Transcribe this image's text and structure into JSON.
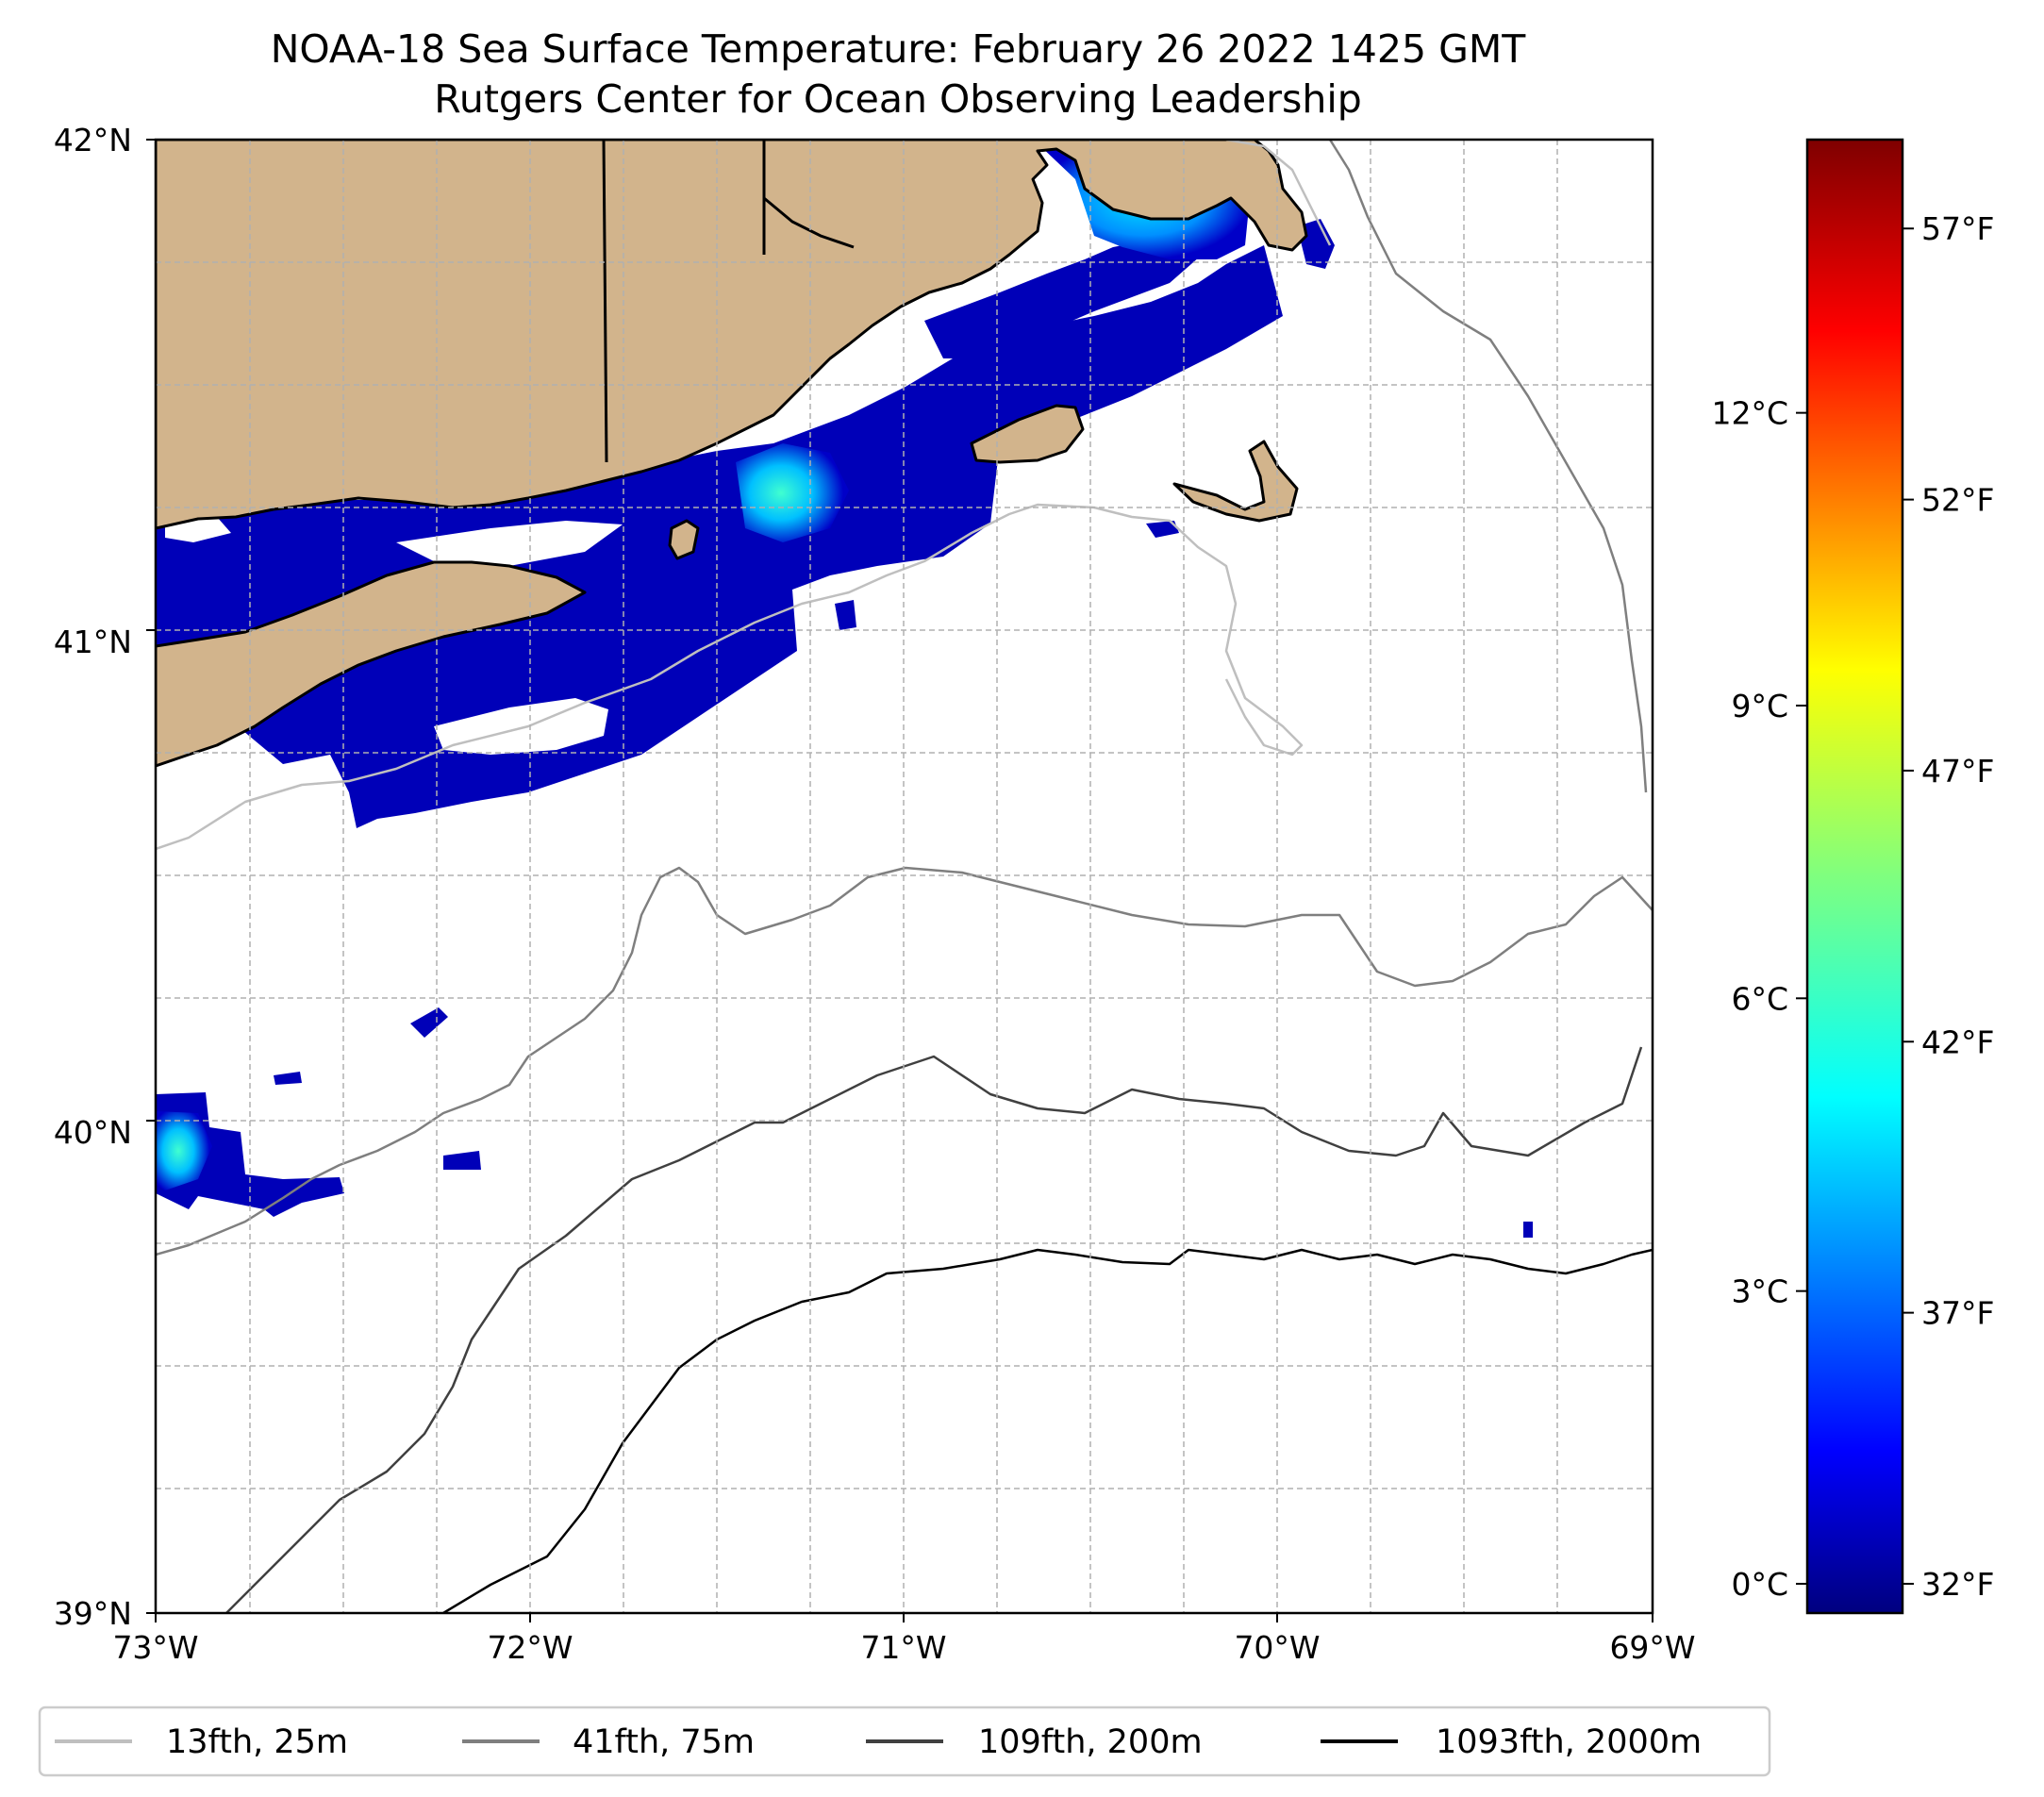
{
  "title": {
    "line1": "NOAA-18 Sea Surface Temperature: February 26 2022 1425 GMT",
    "line2": "Rutgers Center for Ocean Observing Leadership"
  },
  "map": {
    "lon_range": [
      -73,
      -69
    ],
    "lat_range": [
      39,
      42
    ],
    "lon_ticks": [
      {
        "value": -73,
        "label": "73°W"
      },
      {
        "value": -72,
        "label": "72°W"
      },
      {
        "value": -71,
        "label": "71°W"
      },
      {
        "value": -70,
        "label": "70°W"
      },
      {
        "value": -69,
        "label": "69°W"
      }
    ],
    "lat_ticks": [
      {
        "value": 42,
        "label": "42°N"
      },
      {
        "value": 41,
        "label": "41°N"
      },
      {
        "value": 40,
        "label": "40°N"
      },
      {
        "value": 39,
        "label": "39°N"
      }
    ],
    "land_color": "#d2b48c",
    "gridlines": "dashed"
  },
  "colorbar": {
    "celsius_range": [
      -0.3,
      14.8
    ],
    "celsius_ticks": [
      {
        "value": 0,
        "label": "0°C"
      },
      {
        "value": 3,
        "label": "3°C"
      },
      {
        "value": 6,
        "label": "6°C"
      },
      {
        "value": 9,
        "label": "9°C"
      },
      {
        "value": 12,
        "label": "12°C"
      }
    ],
    "fahrenheit_ticks": [
      {
        "value": 32,
        "label": "32°F"
      },
      {
        "value": 37,
        "label": "37°F"
      },
      {
        "value": 42,
        "label": "42°F"
      },
      {
        "value": 47,
        "label": "47°F"
      },
      {
        "value": 52,
        "label": "52°F"
      },
      {
        "value": 57,
        "label": "57°F"
      }
    ],
    "colormap": "jet",
    "colors": [
      "#00007f",
      "#0000ff",
      "#007fff",
      "#00ffff",
      "#7fff7f",
      "#ffff00",
      "#ff7f00",
      "#ff0000",
      "#7f0000"
    ]
  },
  "legend": {
    "items": [
      {
        "label": "13fth, 25m",
        "color": "#bfbfbf"
      },
      {
        "label": "41fth, 75m",
        "color": "#7f7f7f"
      },
      {
        "label": "109fth, 200m",
        "color": "#404040"
      },
      {
        "label": "1093fth, 2000m",
        "color": "#000000"
      }
    ]
  }
}
